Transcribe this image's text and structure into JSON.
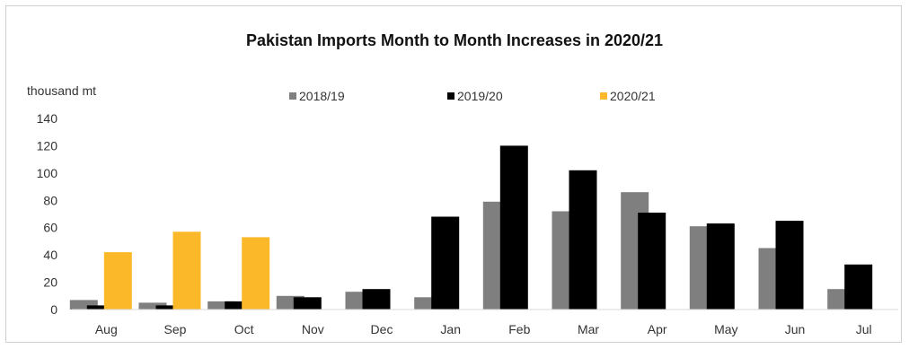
{
  "chart_data": {
    "type": "bar",
    "title": "Pakistan Imports Month to Month Increases in 2020/21",
    "ylabel": "thousand mt",
    "xlabel": "",
    "ylim": [
      0,
      140
    ],
    "yticks": [
      0,
      20,
      40,
      60,
      80,
      100,
      120,
      140
    ],
    "legend_placement": "top",
    "grid": false,
    "categories": [
      "Aug",
      "Sep",
      "Oct",
      "Nov",
      "Dec",
      "Jan",
      "Feb",
      "Mar",
      "Apr",
      "May",
      "Jun",
      "Jul"
    ],
    "series": [
      {
        "name": "2018/19",
        "color": "#7f7f7f",
        "values": [
          7,
          5,
          6,
          10,
          13,
          9,
          79,
          72,
          86,
          61,
          45,
          15
        ]
      },
      {
        "name": "2019/20",
        "color": "#000000",
        "values": [
          3,
          3,
          6,
          9,
          15,
          68,
          120,
          102,
          71,
          63,
          65,
          33
        ]
      },
      {
        "name": "2020/21",
        "color": "#fbb829",
        "values": [
          42,
          57,
          53,
          null,
          null,
          null,
          null,
          null,
          null,
          null,
          null,
          null
        ]
      }
    ]
  }
}
